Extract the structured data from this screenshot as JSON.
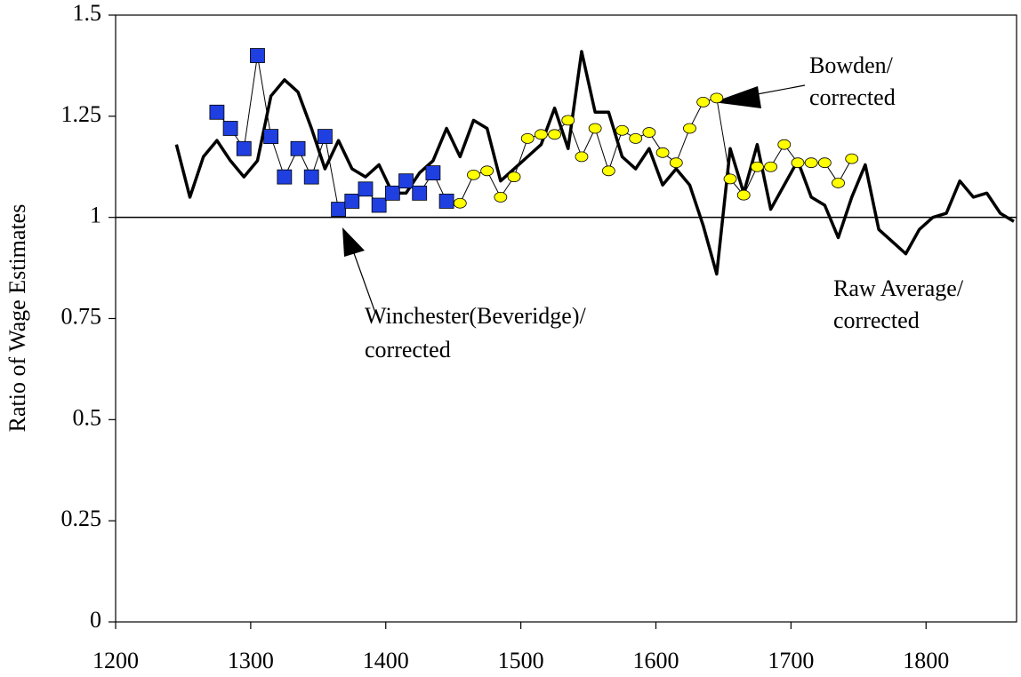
{
  "chart_data": {
    "type": "line",
    "y_label": "Ratio of Wage Estimates",
    "xlim": [
      1200,
      1867
    ],
    "xticks": [
      1200,
      1300,
      1400,
      1500,
      1600,
      1700,
      1800
    ],
    "ylim": [
      0,
      1.5
    ],
    "yticks": [
      0,
      0.25,
      0.5,
      0.75,
      1,
      1.25,
      1.5
    ],
    "reference_line": 1,
    "series": [
      {
        "color": "#000000",
        "marker": "none",
        "x": [
          1245,
          1255,
          1265,
          1275,
          1285,
          1295,
          1305,
          1315,
          1325,
          1335,
          1345,
          1355,
          1365,
          1375,
          1385,
          1395,
          1405,
          1415,
          1425,
          1435,
          1445,
          1455,
          1465,
          1475,
          1485,
          1495,
          1505,
          1515,
          1525,
          1535,
          1545,
          1555,
          1565,
          1575,
          1585,
          1595,
          1605,
          1615,
          1625,
          1635,
          1645,
          1655,
          1665,
          1675,
          1685,
          1695,
          1705,
          1715,
          1725,
          1735,
          1745,
          1755,
          1765,
          1775,
          1785,
          1795,
          1805,
          1815,
          1825,
          1835,
          1845,
          1855,
          1865
        ],
        "values": [
          1.18,
          1.05,
          1.15,
          1.19,
          1.14,
          1.1,
          1.14,
          1.3,
          1.34,
          1.31,
          1.22,
          1.12,
          1.19,
          1.12,
          1.1,
          1.13,
          1.06,
          1.06,
          1.11,
          1.14,
          1.22,
          1.15,
          1.24,
          1.22,
          1.09,
          1.12,
          1.15,
          1.18,
          1.27,
          1.17,
          1.41,
          1.26,
          1.26,
          1.15,
          1.12,
          1.17,
          1.08,
          1.12,
          1.08,
          0.98,
          0.86,
          1.17,
          1.06,
          1.18,
          1.02,
          1.08,
          1.14,
          1.05,
          1.03,
          0.95,
          1.05,
          1.13,
          0.97,
          0.94,
          0.91,
          0.97,
          1.0,
          1.01,
          1.09,
          1.05,
          1.06,
          1.01,
          0.99
        ]
      },
      {
        "color": "#1f3fe0",
        "marker": "square",
        "x": [
          1275,
          1285,
          1295,
          1305,
          1315,
          1325,
          1335,
          1345,
          1355,
          1365,
          1375,
          1385,
          1395,
          1405,
          1415,
          1425,
          1435,
          1445
        ],
        "values": [
          1.26,
          1.22,
          1.17,
          1.4,
          1.2,
          1.1,
          1.17,
          1.1,
          1.2,
          1.02,
          1.04,
          1.07,
          1.03,
          1.06,
          1.09,
          1.06,
          1.11,
          1.04
        ]
      },
      {
        "color": "#ffff00",
        "marker": "oval",
        "x": [
          1455,
          1465,
          1475,
          1485,
          1495,
          1505,
          1515,
          1525,
          1535,
          1545,
          1555,
          1565,
          1575,
          1585,
          1595,
          1605,
          1615,
          1625,
          1635,
          1645,
          1655,
          1665,
          1675,
          1685,
          1695,
          1705,
          1715,
          1725,
          1735,
          1745
        ],
        "values": [
          1.035,
          1.105,
          1.115,
          1.05,
          1.1,
          1.195,
          1.205,
          1.205,
          1.24,
          1.15,
          1.22,
          1.115,
          1.215,
          1.195,
          1.21,
          1.16,
          1.135,
          1.22,
          1.285,
          1.295,
          1.095,
          1.055,
          1.125,
          1.125,
          1.18,
          1.135,
          1.135,
          1.135,
          1.085,
          1.145
        ]
      }
    ],
    "annotations": [
      {
        "lines": [
          "Bowden/",
          "corrected"
        ]
      },
      {
        "lines": [
          "Winchester(Beveridge)/",
          "corrected"
        ]
      },
      {
        "lines": [
          "Raw Average/",
          "corrected"
        ]
      }
    ]
  }
}
